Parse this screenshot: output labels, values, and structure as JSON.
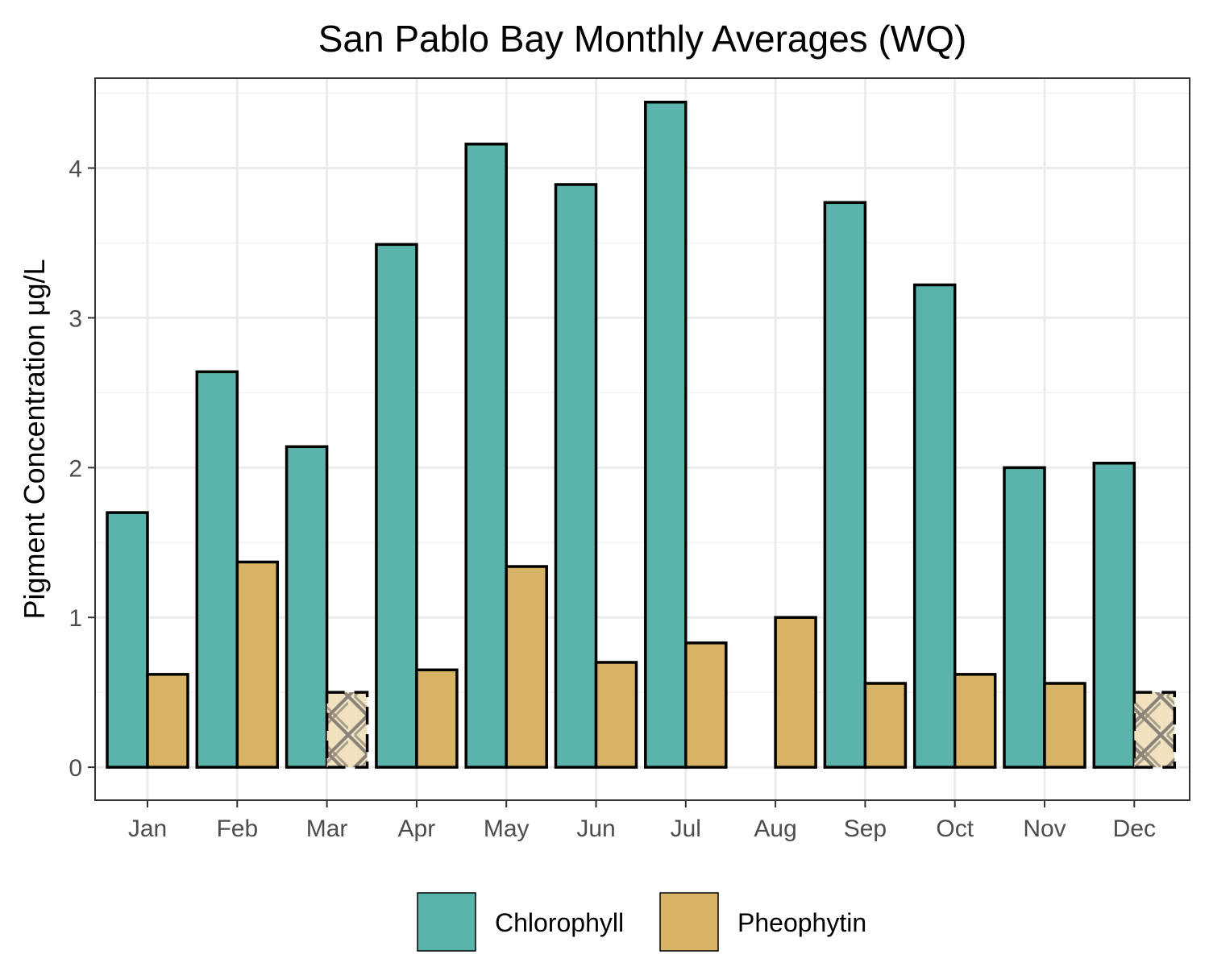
{
  "chart_data": {
    "type": "bar",
    "title": "San Pablo Bay Monthly Averages (WQ)",
    "xlabel": "",
    "ylabel": "Pigment Concentration μg/L",
    "categories": [
      "Jan",
      "Feb",
      "Mar",
      "Apr",
      "May",
      "Jun",
      "Jul",
      "Aug",
      "Sep",
      "Oct",
      "Nov",
      "Dec"
    ],
    "series": [
      {
        "name": "Chlorophyll",
        "color": "#5bb4ab",
        "values": [
          1.7,
          2.64,
          2.14,
          3.49,
          4.16,
          3.89,
          4.44,
          null,
          3.77,
          3.22,
          2.0,
          2.03
        ],
        "hatched": [
          false,
          false,
          false,
          false,
          false,
          false,
          false,
          false,
          false,
          false,
          false,
          false
        ]
      },
      {
        "name": "Pheophytin",
        "color": "#d8b365",
        "values": [
          0.62,
          1.37,
          0.5,
          0.65,
          1.34,
          0.7,
          0.83,
          1.0,
          0.56,
          0.62,
          0.56,
          0.5
        ],
        "hatched": [
          false,
          false,
          true,
          false,
          false,
          false,
          false,
          false,
          false,
          false,
          false,
          true
        ]
      }
    ],
    "ylim": [
      -0.22,
      4.6
    ],
    "yticks": [
      0,
      1,
      2,
      3,
      4
    ],
    "grid": true,
    "legend_position": "bottom"
  }
}
